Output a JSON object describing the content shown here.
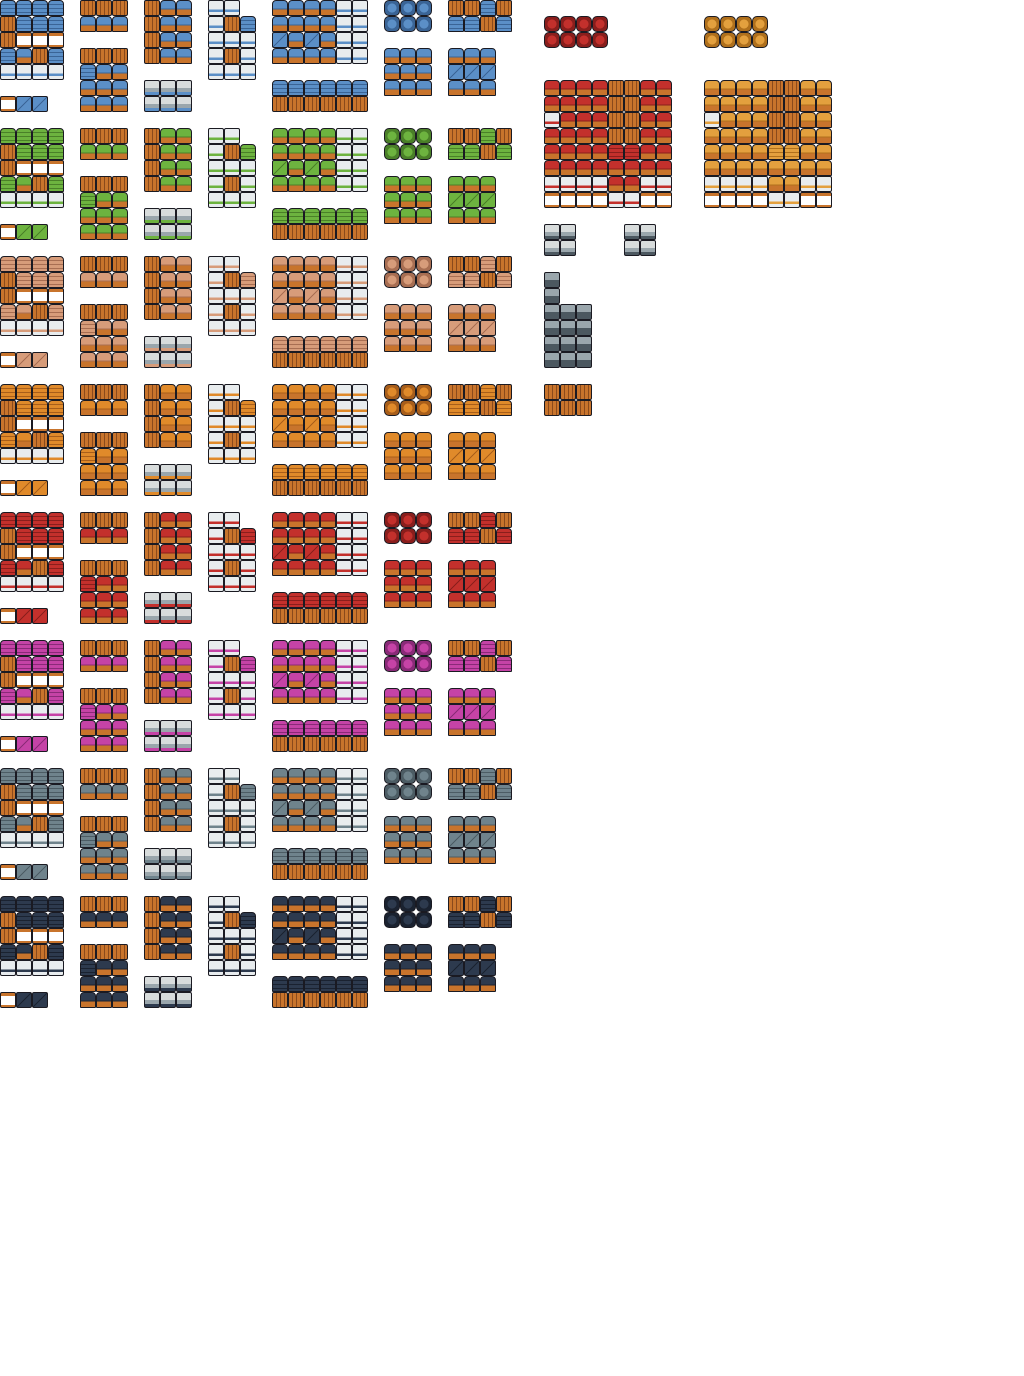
{
  "sheet": {
    "background": "#ffffff",
    "outline": "#1a1a22",
    "wood": "#c8742c",
    "wood_dark": "#8a4a1c",
    "wall": "#e8ecee",
    "stone": "#9aa6ac",
    "variants": [
      {
        "roof": "#5b8fc7",
        "roof_dark": "#3a6496"
      },
      {
        "roof": "#6db33f",
        "roof_dark": "#4a8028"
      },
      {
        "roof": "#d79c7a",
        "roof_dark": "#a86e52"
      },
      {
        "roof": "#e08a2a",
        "roof_dark": "#a85e1a"
      },
      {
        "roof": "#c3302c",
        "roof_dark": "#8a1e1c"
      },
      {
        "roof": "#c543a6",
        "roof_dark": "#8a2a78"
      },
      {
        "roof": "#6f838c",
        "roof_dark": "#4c5c64"
      },
      {
        "roof": "#2d3a4e",
        "roof_dark": "#1a2230"
      }
    ],
    "castle_sets": [
      {
        "main": "#c3302c",
        "dark": "#8a1e1c"
      },
      {
        "main": "#e3a03e",
        "dark": "#b0701c"
      }
    ],
    "misc": {
      "stone_dark": "#4c5860",
      "stone_light": "#d8dcdc",
      "glow": "#9ad04a"
    }
  }
}
